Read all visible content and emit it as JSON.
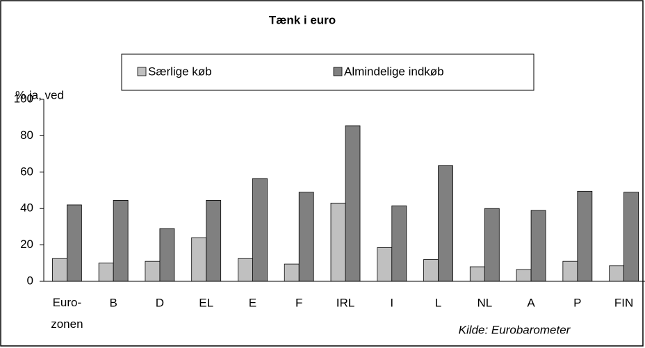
{
  "chart_data": {
    "type": "bar",
    "title": "Tænk i euro",
    "y_label": "% ja, ved",
    "source": "Kilde: Eurobarometer",
    "categories": [
      "Euro-zonen",
      "B",
      "D",
      "EL",
      "E",
      "F",
      "IRL",
      "I",
      "L",
      "NL",
      "A",
      "P",
      "FIN"
    ],
    "series": [
      {
        "name": "Særlige køb",
        "color": "#c0c0c0",
        "values": [
          12.5,
          10,
          11,
          24,
          12.5,
          9.5,
          43,
          18.5,
          12,
          8,
          6.5,
          11,
          8.5
        ]
      },
      {
        "name": "Almindelige indkøb",
        "color": "#808080",
        "values": [
          42,
          44.5,
          29,
          44.5,
          56.5,
          49,
          85.5,
          41.5,
          63.5,
          40,
          39,
          49.5,
          49
        ]
      }
    ],
    "ylim": [
      0,
      100
    ],
    "yticks": [
      0,
      20,
      40,
      60,
      80,
      100
    ],
    "grid": false
  }
}
